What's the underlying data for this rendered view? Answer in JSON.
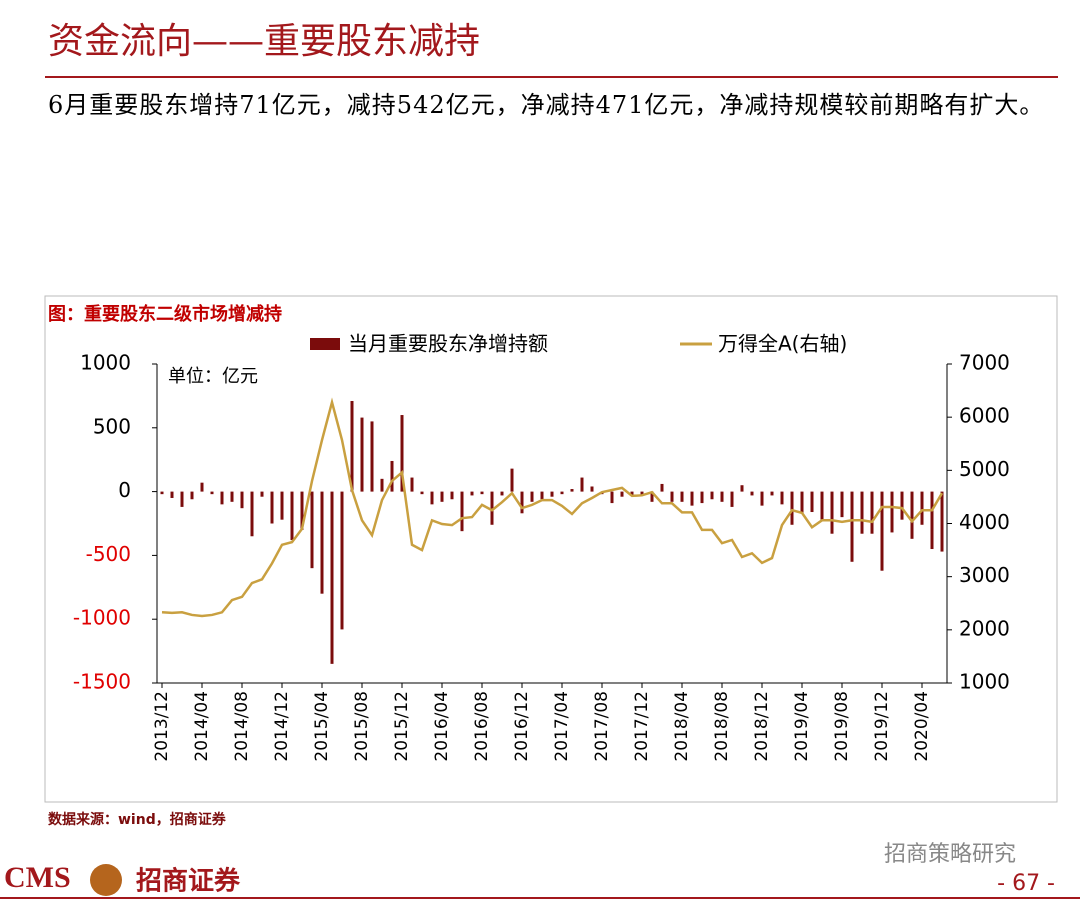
{
  "slide": {
    "title": "资金流向——重要股东减持",
    "body": "6月重要股东增持71亿元，减持542亿元，净减持471亿元，净减持规模较前期略有扩大。",
    "source": "数据来源：wind，招商证券",
    "logo_text": "CMS",
    "brand": "招商证券",
    "watermark": "招商策略研究",
    "page": "- 67 -"
  },
  "chart_data": {
    "type": "bar_line",
    "title": "图：重要股东二级市场增减持",
    "unit_label": "单位：亿元",
    "categories": [
      "2013/12",
      null,
      null,
      null,
      "2014/04",
      null,
      null,
      null,
      "2014/08",
      null,
      null,
      null,
      "2014/12",
      null,
      null,
      null,
      "2015/04",
      null,
      null,
      null,
      "2015/08",
      null,
      null,
      null,
      "2015/12",
      null,
      null,
      null,
      "2016/04",
      null,
      null,
      null,
      "2016/08",
      null,
      null,
      null,
      "2016/12",
      null,
      null,
      null,
      "2017/04",
      null,
      null,
      null,
      "2017/08",
      null,
      null,
      null,
      "2017/12",
      null,
      null,
      null,
      "2018/04",
      null,
      null,
      null,
      "2018/08",
      null,
      null,
      null,
      "2018/12",
      null,
      null,
      null,
      "2019/04",
      null,
      null,
      null,
      "2019/08",
      null,
      null,
      null,
      "2019/12",
      null,
      null,
      null,
      "2020/04",
      null,
      null
    ],
    "series": [
      {
        "name": "当月重要股东净增持额",
        "type": "bar",
        "color": "#7b0c0c",
        "values": [
          -20,
          -50,
          -120,
          -60,
          70,
          -20,
          -100,
          -80,
          -130,
          -350,
          -40,
          -250,
          -220,
          -380,
          -300,
          -600,
          -800,
          -1350,
          -1080,
          710,
          580,
          550,
          100,
          240,
          600,
          110,
          -20,
          -100,
          -80,
          -60,
          -310,
          -30,
          -20,
          -260,
          -30,
          180,
          -170,
          -80,
          -60,
          -40,
          -20,
          20,
          110,
          40,
          -20,
          -90,
          -40,
          -30,
          -30,
          -80,
          60,
          -80,
          -80,
          -110,
          -90,
          -60,
          -80,
          -120,
          50,
          -30,
          -110,
          -30,
          -100,
          -260,
          -170,
          -160,
          -220,
          -330,
          -200,
          -550,
          -330,
          -330,
          -620,
          -320,
          -220,
          -370,
          -260,
          -450,
          -470
        ]
      },
      {
        "name": "万得全A(右轴)",
        "type": "line",
        "axis": "y2",
        "color": "#c9a040",
        "values": [
          2330,
          2320,
          2330,
          2280,
          2260,
          2280,
          2330,
          2560,
          2620,
          2880,
          2950,
          3250,
          3600,
          3650,
          3900,
          4800,
          5570,
          6280,
          5570,
          4630,
          4060,
          3780,
          4440,
          4800,
          4960,
          3600,
          3500,
          4060,
          3990,
          3970,
          4100,
          4120,
          4350,
          4250,
          4400,
          4570,
          4290,
          4350,
          4440,
          4440,
          4330,
          4180,
          4380,
          4480,
          4590,
          4630,
          4670,
          4520,
          4530,
          4590,
          4380,
          4380,
          4210,
          4210,
          3880,
          3880,
          3630,
          3690,
          3370,
          3440,
          3260,
          3350,
          3970,
          4250,
          4200,
          3930,
          4060,
          4060,
          4030,
          4060,
          4060,
          4030,
          4310,
          4310,
          4290,
          4040,
          4250,
          4250,
          4570
        ]
      }
    ],
    "ylim": [
      -1500,
      1000
    ],
    "yticks": [
      -1500,
      -1000,
      -500,
      0,
      500,
      1000
    ],
    "y2lim": [
      1000,
      7000
    ],
    "y2ticks": [
      1000,
      2000,
      3000,
      4000,
      5000,
      6000,
      7000
    ],
    "negative_tick_color": "#e00000",
    "grid": false
  }
}
